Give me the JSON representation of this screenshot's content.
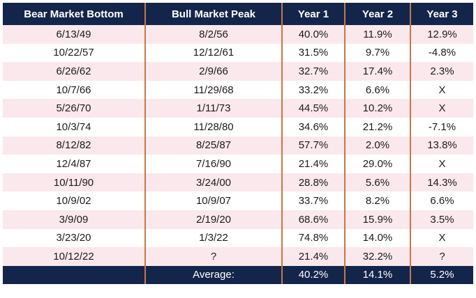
{
  "chart_data": {
    "type": "table",
    "columns": [
      "Bear Market Bottom",
      "Bull Market Peak",
      "Year 1",
      "Year 2",
      "Year 3"
    ],
    "rows": [
      [
        "6/13/49",
        "8/2/56",
        "40.0%",
        "11.9%",
        "12.9%"
      ],
      [
        "10/22/57",
        "12/12/61",
        "31.5%",
        "9.7%",
        "-4.8%"
      ],
      [
        "6/26/62",
        "2/9/66",
        "32.7%",
        "17.4%",
        "2.3%"
      ],
      [
        "10/7/66",
        "11/29/68",
        "33.2%",
        "6.6%",
        "X"
      ],
      [
        "5/26/70",
        "1/11/73",
        "44.5%",
        "10.2%",
        "X"
      ],
      [
        "10/3/74",
        "11/28/80",
        "34.6%",
        "21.2%",
        "-7.1%"
      ],
      [
        "8/12/82",
        "8/25/87",
        "57.7%",
        "2.0%",
        "13.8%"
      ],
      [
        "12/4/87",
        "7/16/90",
        "21.4%",
        "29.0%",
        "X"
      ],
      [
        "10/11/90",
        "3/24/00",
        "28.8%",
        "5.6%",
        "14.3%"
      ],
      [
        "10/9/02",
        "10/9/07",
        "33.7%",
        "8.2%",
        "6.6%"
      ],
      [
        "3/9/09",
        "2/19/20",
        "68.6%",
        "15.9%",
        "3.5%"
      ],
      [
        "3/23/20",
        "1/3/22",
        "74.8%",
        "14.0%",
        "X"
      ],
      [
        "10/12/22",
        "?",
        "21.4%",
        "32.2%",
        "?"
      ]
    ],
    "footer": {
      "label": "Average:",
      "values": [
        "40.2%",
        "14.1%",
        "5.2%"
      ]
    }
  },
  "colors": {
    "header_bg": "#14254b",
    "stripe_bg": "#fbe8ec",
    "divider": "#c8773f"
  }
}
